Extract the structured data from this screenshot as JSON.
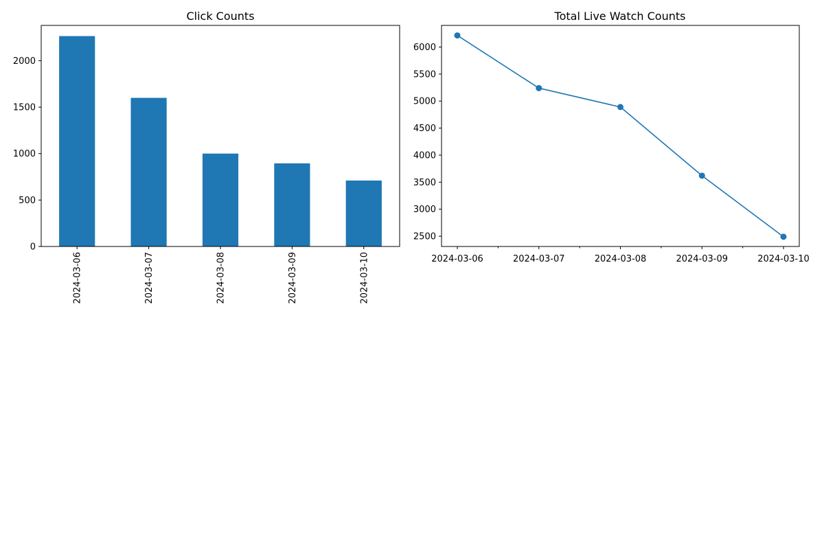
{
  "chart_data": [
    {
      "type": "bar",
      "title": "Click Counts",
      "xlabel": "",
      "ylabel": "",
      "categories": [
        "2024-03-06",
        "2024-03-07",
        "2024-03-08",
        "2024-03-09",
        "2024-03-10"
      ],
      "values": [
        2265,
        1600,
        1000,
        895,
        710
      ],
      "ylim": [
        0,
        2380
      ],
      "yticks": [
        0,
        500,
        1000,
        1500,
        2000
      ],
      "grid": false,
      "color": "#1f77b4"
    },
    {
      "type": "line",
      "title": "Total Live Watch Counts",
      "xlabel": "",
      "ylabel": "",
      "categories": [
        "2024-03-06",
        "2024-03-07",
        "2024-03-08",
        "2024-03-09",
        "2024-03-10"
      ],
      "values": [
        6215,
        5240,
        4890,
        3620,
        2490
      ],
      "ylim": [
        2310,
        6400
      ],
      "yticks": [
        2500,
        3000,
        3500,
        4000,
        4500,
        5000,
        5500,
        6000
      ],
      "grid": false,
      "markers": true,
      "color": "#1f77b4"
    }
  ]
}
